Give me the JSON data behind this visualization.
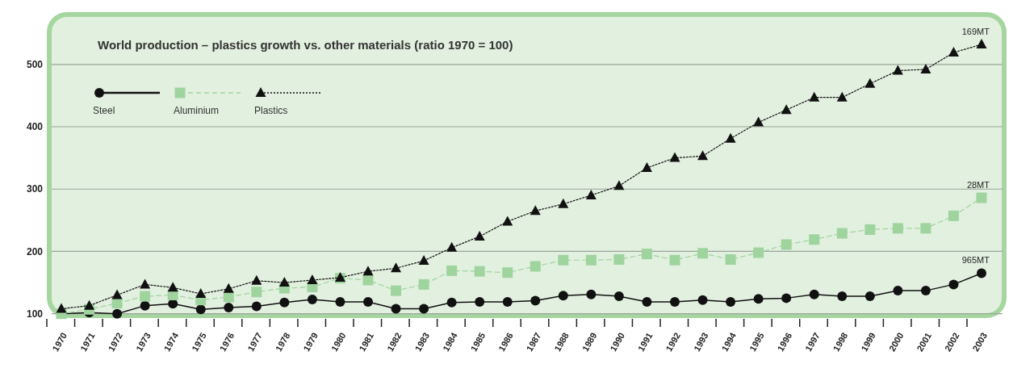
{
  "chart_data": {
    "type": "line",
    "title": "World production – plastics growth vs. other materials (ratio 1970 = 100)",
    "categories": [
      "1970",
      "1971",
      "1972",
      "1973",
      "1974",
      "1975",
      "1976",
      "1977",
      "1978",
      "1979",
      "1980",
      "1981",
      "1982",
      "1983",
      "1984",
      "1985",
      "1986",
      "1987",
      "1988",
      "1989",
      "1990",
      "1991",
      "1992",
      "1993",
      "1994",
      "1995",
      "1996",
      "1997",
      "1998",
      "1999",
      "2000",
      "2001",
      "2002",
      "2003"
    ],
    "series": [
      {
        "name": "Steel",
        "color": "#111111",
        "marker": "circle",
        "line_style": "solid",
        "values": [
          100,
          102,
          100,
          113,
          116,
          107,
          110,
          112,
          118,
          123,
          119,
          119,
          108,
          108,
          118,
          119,
          119,
          121,
          129,
          131,
          128,
          119,
          119,
          122,
          119,
          124,
          125,
          131,
          128,
          128,
          137,
          137,
          147,
          165
        ]
      },
      {
        "name": "Aluminium",
        "color": "#9fd49f",
        "marker": "square",
        "line_style": "dashed",
        "values": [
          100,
          107,
          117,
          128,
          130,
          122,
          127,
          135,
          141,
          143,
          157,
          154,
          137,
          147,
          169,
          168,
          166,
          176,
          186,
          186,
          187,
          196,
          186,
          197,
          187,
          198,
          211,
          219,
          229,
          235,
          237,
          237,
          257,
          286
        ]
      },
      {
        "name": "Plastics",
        "color": "#111111",
        "marker": "triangle",
        "line_style": "dotted",
        "values": [
          108,
          113,
          130,
          147,
          142,
          132,
          140,
          153,
          150,
          154,
          158,
          168,
          173,
          185,
          206,
          224,
          248,
          265,
          276,
          290,
          305,
          334,
          350,
          353,
          381,
          407,
          427,
          447,
          447,
          469,
          490,
          492,
          519,
          532
        ]
      }
    ],
    "annotations": [
      {
        "text": "169MT",
        "x": "2003",
        "y": 532
      },
      {
        "text": "28MT",
        "x": "2003",
        "y": 286
      },
      {
        "text": "965MT",
        "x": "2003",
        "y": 165
      }
    ],
    "ylim": [
      97,
      580
    ],
    "yticks": [
      100,
      200,
      300,
      400,
      500
    ],
    "grid": "y",
    "legend": "top left"
  }
}
